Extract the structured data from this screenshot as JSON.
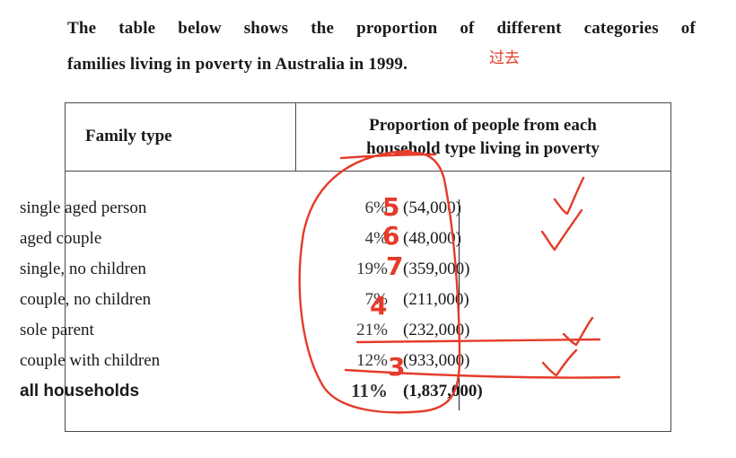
{
  "intro": {
    "line1": "The table below shows the proportion of different categories of",
    "line2": "families living in poverty in Australia in 1999."
  },
  "handwritten_note": "过去",
  "table": {
    "headers": {
      "family_type": "Family type",
      "proportion_line1": "Proportion of people from each",
      "proportion_line2": "household type living in poverty"
    },
    "rows": [
      {
        "family_type": "single aged person",
        "percent": "6%",
        "count": "(54,000)"
      },
      {
        "family_type": "aged couple",
        "percent": "4%",
        "count": "(48,000)"
      },
      {
        "family_type": "single, no children",
        "percent": "19%",
        "count": "(359,000)"
      },
      {
        "family_type": "couple, no children",
        "percent": "7%",
        "count": "(211,000)"
      },
      {
        "family_type": "sole parent",
        "percent": "21%",
        "count": "(232,000)"
      },
      {
        "family_type": "couple with children",
        "percent": "12%",
        "count": "(933,000)"
      }
    ],
    "total": {
      "family_type": "all households",
      "percent": "11%",
      "count": "(1,837,000)"
    }
  },
  "annotations": {
    "ink_color": "#e53b2a",
    "rank_digits": [
      "5",
      "6",
      "7",
      "4",
      "3"
    ]
  }
}
